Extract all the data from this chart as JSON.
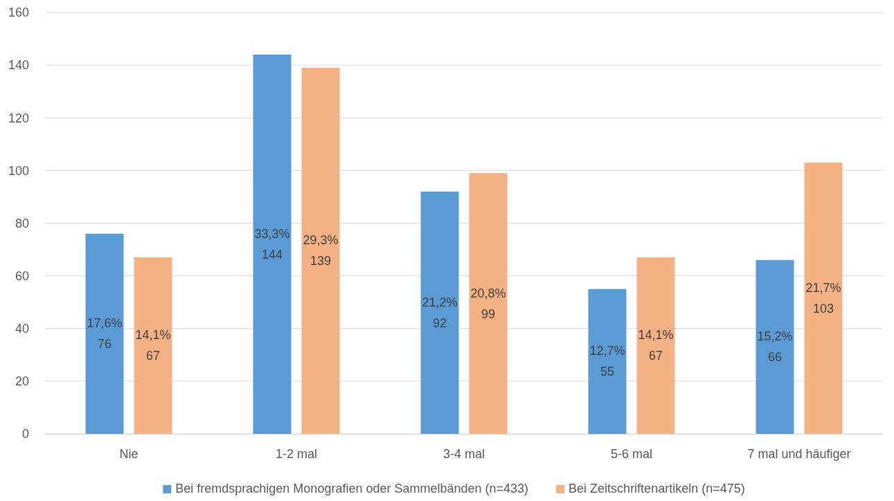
{
  "chart_data": {
    "type": "bar",
    "categories": [
      "Nie",
      "1-2 mal",
      "3-4 mal",
      "5-6 mal",
      "7 mal und häufiger"
    ],
    "series": [
      {
        "name": "Bei fremdsprachigen Monografien oder Sammelbänden (n=433)",
        "color": "#5b9bd5",
        "values": [
          76,
          144,
          92,
          55,
          66
        ],
        "value_labels": [
          "17,6%\n76",
          "33,3%\n144",
          "21,2%\n92",
          "12,7%\n55",
          "15,2%\n66"
        ]
      },
      {
        "name": "Bei Zeitschriftenartikeln (n=475)",
        "color": "#f4b183",
        "values": [
          67,
          139,
          99,
          67,
          103
        ],
        "value_labels": [
          "14,1%\n67",
          "29,3%\n139",
          "20,8%\n99",
          "14,1%\n67",
          "21,7%\n103"
        ]
      }
    ],
    "ylim": [
      0,
      160
    ],
    "yticks": [
      0,
      20,
      40,
      60,
      80,
      100,
      120,
      140,
      160
    ],
    "grid": "y",
    "legend": "bottom"
  }
}
